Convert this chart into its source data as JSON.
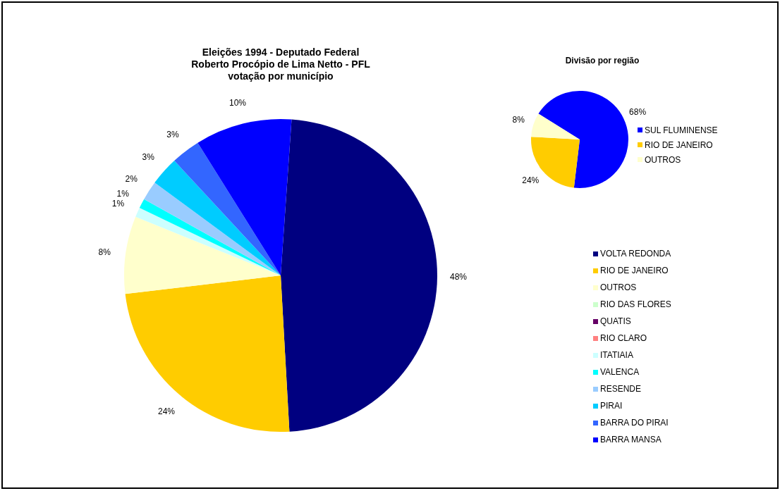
{
  "chart_data": [
    {
      "type": "pie",
      "title": "Eleições 1994 - Deputado Federal\nRoberto Procópio de Lima Netto - PFL\nvotação por município",
      "categories": [
        "VOLTA REDONDA",
        "RIO DE JANEIRO",
        "OUTROS",
        "RIO DAS FLORES",
        "QUATIS",
        "RIO CLARO",
        "ITATIAIA",
        "VALENCA",
        "RESENDE",
        "PIRAI",
        "BARRA DO PIRAI",
        "BARRA MANSA"
      ],
      "values": [
        48,
        24,
        8,
        0,
        0,
        0,
        1,
        1,
        2,
        3,
        3,
        10
      ],
      "colors": [
        "#000080",
        "#ffcc00",
        "#ffffcc",
        "#ccffcc",
        "#660066",
        "#ff8080",
        "#ccffff",
        "#00ffff",
        "#99ccff",
        "#00ccff",
        "#3366ff",
        "#0000ff"
      ],
      "value_labels": [
        "48%",
        "24%",
        "8%",
        null,
        null,
        null,
        "1%",
        "1%",
        "2%",
        "3%",
        "3%",
        "10%"
      ],
      "legend": "right"
    },
    {
      "type": "pie",
      "title": "Divisão por região",
      "categories": [
        "SUL FLUMINENSE",
        "RIO DE JANEIRO",
        "OUTROS"
      ],
      "values": [
        68,
        24,
        8
      ],
      "colors": [
        "#0000ff",
        "#ffcc00",
        "#ffffcc"
      ],
      "value_labels": [
        "68%",
        "24%",
        "8%"
      ],
      "legend": "right"
    }
  ]
}
